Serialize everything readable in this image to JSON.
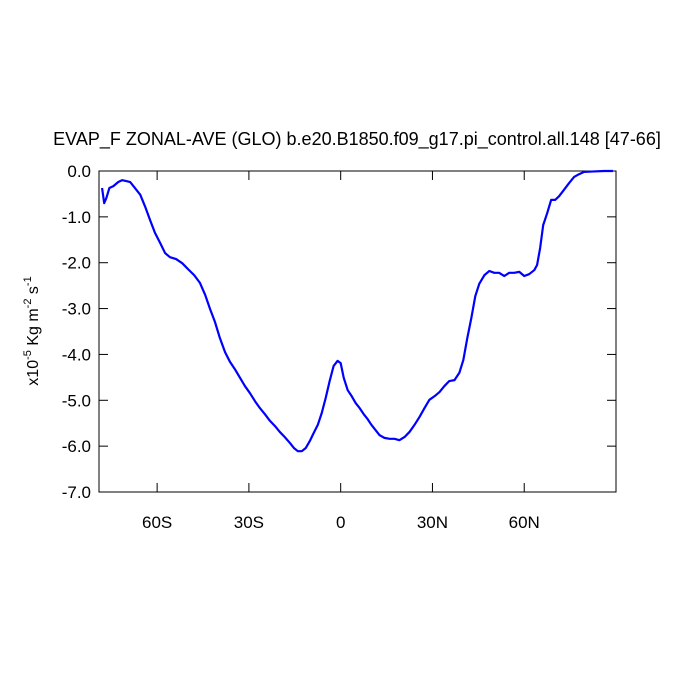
{
  "chart_data": {
    "type": "line",
    "title": "EVAP_F ZONAL-AVE (GLO) b.e20.B1850.f09_g17.pi_control.all.148 [47-66]",
    "ylabel": [
      "x10",
      "-5",
      " Kg m",
      "-2",
      " s",
      "-1"
    ],
    "xlim": [
      -79,
      90
    ],
    "ylim": [
      -7,
      0
    ],
    "xticks": [
      {
        "value": -60,
        "label": "60S"
      },
      {
        "value": -30,
        "label": "30S"
      },
      0,
      {
        "value": 30,
        "label": "30N"
      },
      {
        "value": 60,
        "label": "60N"
      }
    ],
    "yticks": [
      {
        "value": 0,
        "label": "0.0"
      },
      {
        "value": -1,
        "label": "-1.0"
      },
      {
        "value": -2,
        "label": "-2.0"
      },
      {
        "value": -3,
        "label": "-3.0"
      },
      {
        "value": -4,
        "label": "-4.0"
      },
      {
        "value": -5,
        "label": "-5.0"
      },
      {
        "value": -6,
        "label": "-6.0"
      },
      {
        "value": -7,
        "label": "-7.0"
      }
    ],
    "grid": false,
    "x": [
      -78.0,
      -77.3,
      -76.6,
      -75.6,
      -74.3,
      -72.7,
      -71.4,
      -70.1,
      -68.8,
      -67.5,
      -65.5,
      -63.9,
      -62.3,
      -60.7,
      -59.0,
      -57.4,
      -55.8,
      -53.8,
      -51.8,
      -49.9,
      -47.9,
      -46.0,
      -44.3,
      -42.7,
      -41.1,
      -39.5,
      -37.8,
      -36.2,
      -34.6,
      -32.9,
      -31.3,
      -29.7,
      -28.0,
      -26.4,
      -24.8,
      -23.1,
      -21.5,
      -19.9,
      -18.3,
      -16.6,
      -15.3,
      -14.0,
      -12.7,
      -11.4,
      -10.1,
      -8.8,
      -7.5,
      -6.2,
      -4.9,
      -3.6,
      -2.3,
      -1.0,
      0,
      1.0,
      2.3,
      3.6,
      4.9,
      6.2,
      7.5,
      8.8,
      10.1,
      11.4,
      12.7,
      14.3,
      16.0,
      17.6,
      19.2,
      20.9,
      22.5,
      24.1,
      25.8,
      27.4,
      29.0,
      30.7,
      32.3,
      33.9,
      35.5,
      37.2,
      38.8,
      40.1,
      41.4,
      42.7,
      44.0,
      45.3,
      47.0,
      48.6,
      50.2,
      51.8,
      53.5,
      55.1,
      56.7,
      58.4,
      60.0,
      61.6,
      63.3,
      64.2,
      65.2,
      66.2,
      67.5,
      68.8,
      70.1,
      71.4,
      73.0,
      74.7,
      76.3,
      77.9,
      79.6,
      82.8,
      86.1,
      89.0
    ],
    "series": [
      {
        "color": "#0000ff",
        "values": [
          -0.37,
          -0.7,
          -0.59,
          -0.37,
          -0.33,
          -0.24,
          -0.2,
          -0.22,
          -0.24,
          -0.35,
          -0.52,
          -0.78,
          -1.07,
          -1.35,
          -1.57,
          -1.79,
          -1.88,
          -1.92,
          -2.01,
          -2.14,
          -2.27,
          -2.44,
          -2.7,
          -3.01,
          -3.29,
          -3.64,
          -3.95,
          -4.16,
          -4.32,
          -4.51,
          -4.69,
          -4.84,
          -5.02,
          -5.17,
          -5.3,
          -5.45,
          -5.56,
          -5.69,
          -5.8,
          -5.93,
          -6.04,
          -6.11,
          -6.11,
          -6.04,
          -5.89,
          -5.71,
          -5.54,
          -5.28,
          -4.95,
          -4.58,
          -4.25,
          -4.14,
          -4.19,
          -4.51,
          -4.78,
          -4.91,
          -5.06,
          -5.17,
          -5.3,
          -5.41,
          -5.54,
          -5.65,
          -5.76,
          -5.82,
          -5.84,
          -5.84,
          -5.87,
          -5.8,
          -5.69,
          -5.54,
          -5.36,
          -5.17,
          -4.99,
          -4.91,
          -4.82,
          -4.69,
          -4.58,
          -4.56,
          -4.4,
          -4.12,
          -3.64,
          -3.21,
          -2.73,
          -2.46,
          -2.27,
          -2.18,
          -2.22,
          -2.22,
          -2.29,
          -2.22,
          -2.22,
          -2.2,
          -2.29,
          -2.25,
          -2.16,
          -2.05,
          -1.68,
          -1.18,
          -0.92,
          -0.63,
          -0.63,
          -0.55,
          -0.41,
          -0.26,
          -0.13,
          -0.07,
          -0.02,
          -0.01,
          0.0,
          0.0
        ]
      }
    ]
  }
}
